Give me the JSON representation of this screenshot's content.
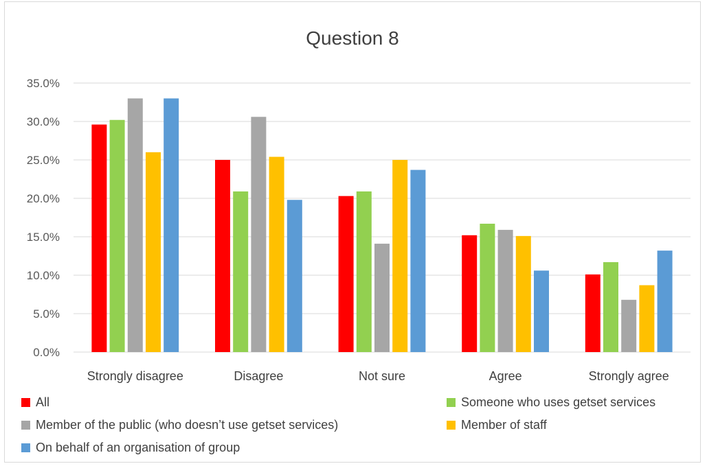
{
  "chart_data": {
    "type": "bar",
    "title": "Question 8",
    "xlabel": "",
    "ylabel": "",
    "ylim": [
      0,
      35
    ],
    "yticks": [
      "0.0%",
      "5.0%",
      "10.0%",
      "15.0%",
      "20.0%",
      "25.0%",
      "30.0%",
      "35.0%"
    ],
    "grid": true,
    "legend_position": "bottom",
    "categories": [
      "Strongly disagree",
      "Disagree",
      "Not sure",
      "Agree",
      "Strongly agree"
    ],
    "series": [
      {
        "name": "All",
        "color": "#ff0000",
        "values": [
          29.6,
          25.0,
          20.3,
          15.2,
          10.1
        ]
      },
      {
        "name": "Someone who uses getset services",
        "color": "#92d050",
        "values": [
          30.2,
          20.9,
          20.9,
          16.7,
          11.7
        ]
      },
      {
        "name": "Member of the public (who doesn’t use getset services)",
        "color": "#a6a6a6",
        "values": [
          33.0,
          30.6,
          14.1,
          15.9,
          6.8
        ]
      },
      {
        "name": "Member of staff",
        "color": "#ffc000",
        "values": [
          26.0,
          25.4,
          25.0,
          15.1,
          8.7
        ]
      },
      {
        "name": "On behalf of an organisation of group",
        "color": "#5b9bd5",
        "values": [
          33.0,
          19.8,
          23.7,
          10.6,
          13.2
        ]
      }
    ]
  }
}
